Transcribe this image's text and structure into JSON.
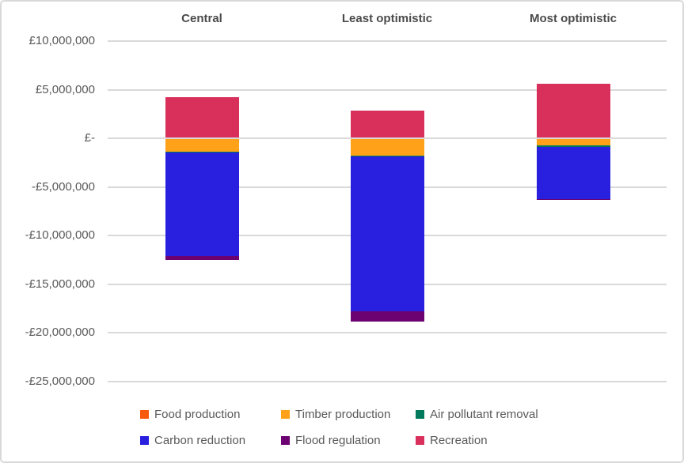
{
  "chart_data": {
    "type": "bar",
    "stacked": true,
    "title": "",
    "categories": [
      "Central",
      "Least optimistic",
      "Most optimistic"
    ],
    "series": [
      {
        "name": "Food production",
        "color": "#F85A0D",
        "values": [
          0,
          0,
          0
        ]
      },
      {
        "name": "Timber production",
        "color": "#FFA119",
        "values": [
          -1400000,
          -1750000,
          -750000
        ]
      },
      {
        "name": "Air pollutant removal",
        "color": "#00795C",
        "values": [
          -100000,
          -120000,
          -130000
        ]
      },
      {
        "name": "Carbon reduction",
        "color": "#2820DE",
        "values": [
          -10650000,
          -15950000,
          -5350000
        ]
      },
      {
        "name": "Flood regulation",
        "color": "#6C0172",
        "values": [
          -400000,
          -1050000,
          -120000
        ]
      },
      {
        "name": "Recreation",
        "color": "#D82F5B",
        "values": [
          4200000,
          2850000,
          5600000
        ]
      }
    ],
    "y_ticks": [
      {
        "value": 10000000,
        "label": "£10,000,000"
      },
      {
        "value": 5000000,
        "label": "£5,000,000"
      },
      {
        "value": 0,
        "label": "£-"
      },
      {
        "value": -5000000,
        "label": "-£5,000,000"
      },
      {
        "value": -10000000,
        "label": "-£10,000,000"
      },
      {
        "value": -15000000,
        "label": "-£15,000,000"
      },
      {
        "value": -20000000,
        "label": "-£20,000,000"
      },
      {
        "value": -25000000,
        "label": "-£25,000,000"
      }
    ],
    "ylim": [
      -25000000,
      10000000
    ],
    "grid": true,
    "legend_position": "bottom",
    "currency_symbol": "£"
  },
  "colors": {
    "background": "#FFFFFF",
    "frame_border": "#D9D9D9",
    "gridline": "#D9D9D9",
    "tick_text": "#595959",
    "category_text": "#4A4A4A",
    "legend_text": "#595959"
  }
}
